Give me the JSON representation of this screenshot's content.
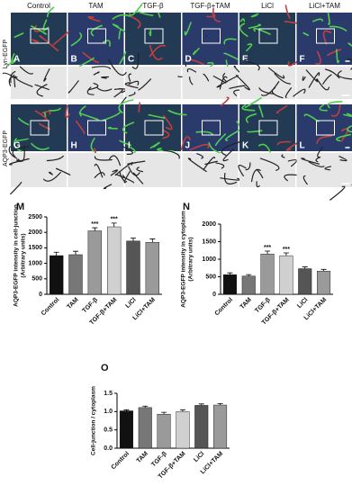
{
  "panels": {
    "columns": [
      "Control",
      "TAM",
      "TGF-β",
      "TGF-β+TAM",
      "LiCl",
      "LiCl+TAM"
    ],
    "rows": [
      "Lyn-EGFP",
      "AQP3-EGFP"
    ],
    "letters": [
      "A",
      "B",
      "C",
      "D",
      "E",
      "F",
      "G",
      "H",
      "I",
      "J",
      "K",
      "L"
    ]
  },
  "chart_data": [
    {
      "type": "bar",
      "label": "M",
      "ylabel": [
        "AQP3-EGFP intensity in cell-junction",
        "(Arbitrary units)"
      ],
      "categories": [
        "Control",
        "TAM",
        "TGF-β",
        "TGF-β+TAM",
        "LiCl",
        "LiCl+TAM"
      ],
      "values": [
        1250,
        1280,
        2050,
        2180,
        1720,
        1680
      ],
      "errors": [
        110,
        110,
        100,
        120,
        100,
        110
      ],
      "significance": [
        null,
        null,
        "***",
        "***",
        null,
        null
      ],
      "colors": [
        "#111111",
        "#777777",
        "#9a9a9a",
        "#d0d0d0",
        "#555555",
        "#9a9a9a"
      ],
      "ylim": [
        0,
        2500
      ],
      "yticks": [
        0,
        500,
        1000,
        1500,
        2000,
        2500
      ]
    },
    {
      "type": "bar",
      "label": "N",
      "ylabel": [
        "AQP3-EGFP intensity in cytoplasm",
        "(Arbitrary units)"
      ],
      "categories": [
        "Control",
        "TAM",
        "TGF-β",
        "TGF-β+TAM",
        "LiCl",
        "LiCl+TAM"
      ],
      "values": [
        560,
        520,
        1150,
        1100,
        730,
        660
      ],
      "errors": [
        50,
        40,
        80,
        80,
        50,
        50
      ],
      "significance": [
        null,
        null,
        "***",
        "***",
        null,
        null
      ],
      "colors": [
        "#111111",
        "#777777",
        "#9a9a9a",
        "#d0d0d0",
        "#555555",
        "#9a9a9a"
      ],
      "ylim": [
        0,
        2000
      ],
      "yticks": [
        0,
        500,
        1000,
        1500,
        2000
      ]
    },
    {
      "type": "bar",
      "label": "O",
      "ylabel": [
        "Cell-junction / cytoplasm"
      ],
      "categories": [
        "Control",
        "TAM",
        "TGF-β",
        "TGF-β+TAM",
        "LiCl",
        "LiCl+TAM"
      ],
      "values": [
        1.02,
        1.11,
        0.93,
        1.0,
        1.17,
        1.18
      ],
      "errors": [
        0.03,
        0.04,
        0.05,
        0.05,
        0.04,
        0.04
      ],
      "colors": [
        "#111111",
        "#777777",
        "#9a9a9a",
        "#d0d0d0",
        "#555555",
        "#9a9a9a"
      ],
      "ylim": [
        0,
        1.5
      ],
      "yticks": [
        {
          "value": 0,
          "label": "0.0"
        },
        {
          "value": 0.5,
          "label": "0.5"
        },
        {
          "value": 1,
          "label": "1.0"
        },
        {
          "value": 1.5,
          "label": "1.5"
        }
      ]
    }
  ]
}
